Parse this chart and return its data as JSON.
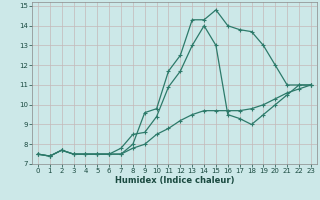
{
  "xlabel": "Humidex (Indice chaleur)",
  "xlim": [
    -0.5,
    23.5
  ],
  "ylim": [
    7,
    15.2
  ],
  "xticks": [
    0,
    1,
    2,
    3,
    4,
    5,
    6,
    7,
    8,
    9,
    10,
    11,
    12,
    13,
    14,
    15,
    16,
    17,
    18,
    19,
    20,
    21,
    22,
    23
  ],
  "yticks": [
    7,
    8,
    9,
    10,
    11,
    12,
    13,
    14,
    15
  ],
  "bg_color": "#cce8e8",
  "grid_color": "#c4b8b8",
  "line_color": "#2d7a6a",
  "line1_x": [
    0,
    1,
    2,
    3,
    4,
    5,
    6,
    7,
    8,
    9,
    10,
    11,
    12,
    13,
    14,
    15,
    16,
    17,
    18,
    19,
    20,
    21,
    22,
    23
  ],
  "line1_y": [
    7.5,
    7.4,
    7.7,
    7.5,
    7.5,
    7.5,
    7.5,
    7.5,
    8.0,
    9.6,
    9.8,
    11.7,
    12.5,
    14.3,
    14.3,
    14.8,
    14.0,
    13.8,
    13.7,
    13.0,
    12.0,
    11.0,
    11.0,
    11.0
  ],
  "line2_x": [
    0,
    1,
    2,
    3,
    4,
    5,
    6,
    7,
    8,
    9,
    10,
    11,
    12,
    13,
    14,
    15,
    16,
    17,
    18,
    19,
    20,
    21,
    22,
    23
  ],
  "line2_y": [
    7.5,
    7.4,
    7.7,
    7.5,
    7.5,
    7.5,
    7.5,
    7.8,
    8.5,
    8.6,
    9.4,
    10.9,
    11.7,
    13.0,
    14.0,
    13.0,
    9.5,
    9.3,
    9.0,
    9.5,
    10.0,
    10.5,
    11.0,
    11.0
  ],
  "line3_x": [
    0,
    1,
    2,
    3,
    4,
    5,
    6,
    7,
    8,
    9,
    10,
    11,
    12,
    13,
    14,
    15,
    16,
    17,
    18,
    19,
    20,
    21,
    22,
    23
  ],
  "line3_y": [
    7.5,
    7.4,
    7.7,
    7.5,
    7.5,
    7.5,
    7.5,
    7.5,
    7.8,
    8.0,
    8.5,
    8.8,
    9.2,
    9.5,
    9.7,
    9.7,
    9.7,
    9.7,
    9.8,
    10.0,
    10.3,
    10.6,
    10.8,
    11.0
  ],
  "tick_fontsize": 5.0,
  "xlabel_fontsize": 6.0
}
